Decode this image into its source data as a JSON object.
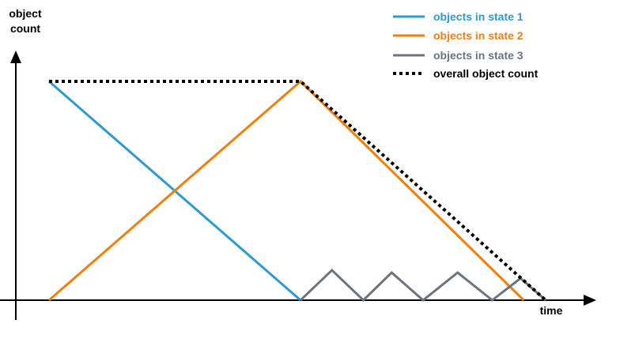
{
  "chart_data": {
    "type": "line",
    "title": "",
    "xlabel": "time",
    "ylabel": "object count",
    "grid": false,
    "legend_placement": "top-right",
    "xlim": [
      -1.06,
      17.4
    ],
    "ylim": [
      -0.9,
      11.5
    ],
    "series": [
      {
        "name": "objects in state 1",
        "color": "#2e9ad0",
        "style": "solid",
        "x": [
          0,
          8
        ],
        "y": [
          10,
          0
        ]
      },
      {
        "name": "objects in state 2",
        "color": "#f07f0c",
        "style": "solid",
        "x": [
          0,
          8,
          15.1
        ],
        "y": [
          0,
          10,
          0
        ]
      },
      {
        "name": "objects in state 3",
        "color": "#6b7480",
        "style": "solid",
        "x": [
          8,
          9.0,
          10.0,
          10.9,
          11.9,
          13.0,
          14.1,
          15.0,
          15.8
        ],
        "y": [
          0,
          1.37,
          0,
          1.26,
          0,
          1.26,
          0,
          1.0,
          0
        ]
      },
      {
        "name": "overall object count",
        "color": "#000000",
        "style": "dotted",
        "x": [
          0,
          8,
          15.8
        ],
        "y": [
          10,
          10,
          0
        ]
      }
    ]
  }
}
